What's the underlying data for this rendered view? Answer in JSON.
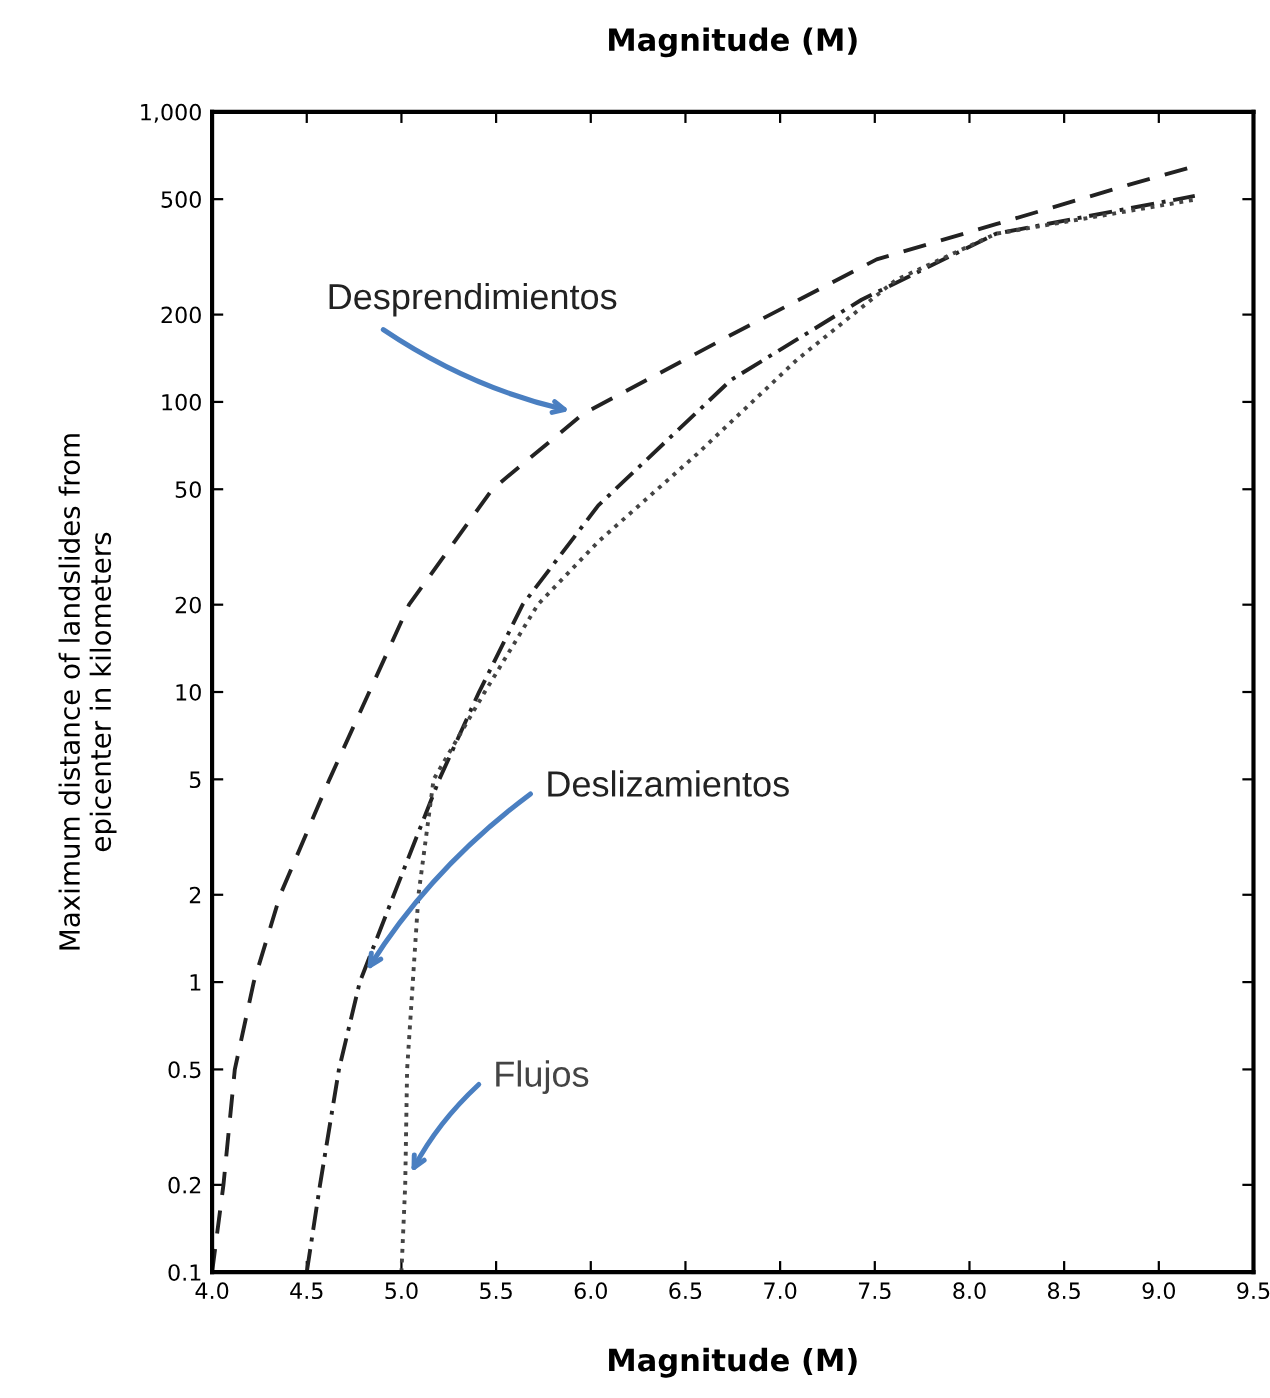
{
  "chart_data": {
    "type": "line",
    "title": "Magnitude (M)",
    "xlabel": "Magnitude (M)",
    "ylabel": "Maximum distance of landslides from\nepicenter in kilometers",
    "log": "y",
    "grid": false,
    "legend": false,
    "marker": "none",
    "xlim": [
      4.0,
      9.5
    ],
    "xticks": [
      {
        "value": 4.0,
        "label": "4.0"
      },
      {
        "value": 4.5,
        "label": "4.5"
      },
      {
        "value": 5.0,
        "label": "5.0"
      },
      {
        "value": 5.5,
        "label": "5.5"
      },
      {
        "value": 6.0,
        "label": "6.0"
      },
      {
        "value": 6.5,
        "label": "6.5"
      },
      {
        "value": 7.0,
        "label": "7.0"
      },
      {
        "value": 7.5,
        "label": "7.5"
      },
      {
        "value": 8.0,
        "label": "8.0"
      },
      {
        "value": 8.5,
        "label": "8.5"
      },
      {
        "value": 9.0,
        "label": "9.0"
      },
      {
        "value": 9.5,
        "label": "9.5"
      }
    ],
    "ylim": [
      0.1,
      1000
    ],
    "yticks": [
      0.1,
      0.2,
      0.5,
      1,
      2,
      5,
      10,
      20,
      50,
      100,
      200,
      500,
      {
        "value": 1000,
        "label": "1,000"
      }
    ],
    "series": [
      {
        "name": "Desprendimientos",
        "color": "#222222",
        "line_style": "dashed",
        "x": [
          4.0,
          4.06,
          4.12,
          4.22,
          4.36,
          4.62,
          4.83,
          5.04,
          5.48,
          5.96,
          6.74,
          7.51,
          8.14,
          8.84,
          9.19
        ],
        "values": [
          0.1,
          0.2,
          0.5,
          1,
          2,
          5,
          10,
          20,
          50,
          91,
          170,
          310,
          410,
          560,
          650
        ]
      },
      {
        "name": "Deslizamientos",
        "color": "#222222",
        "line_style": "dashdot",
        "x": [
          4.5,
          4.57,
          4.67,
          4.78,
          4.96,
          5.2,
          5.41,
          5.64,
          6.04,
          6.74,
          7.43,
          8.14,
          9.19
        ],
        "values": [
          0.1,
          0.2,
          0.5,
          1,
          2,
          5,
          10,
          20,
          44,
          119,
          225,
          380,
          513
        ]
      },
      {
        "name": "Flujos",
        "color": "#444444",
        "line_style": "dotted",
        "x": [
          5.0,
          5.02,
          5.03,
          5.06,
          5.09,
          5.17,
          5.44,
          5.72,
          6.04,
          6.56,
          7.09,
          7.61,
          8.14,
          9.19
        ],
        "values": [
          0.1,
          0.2,
          0.5,
          1,
          2,
          5,
          10,
          20,
          33,
          66,
          140,
          263,
          380,
          498
        ]
      }
    ]
  }
}
